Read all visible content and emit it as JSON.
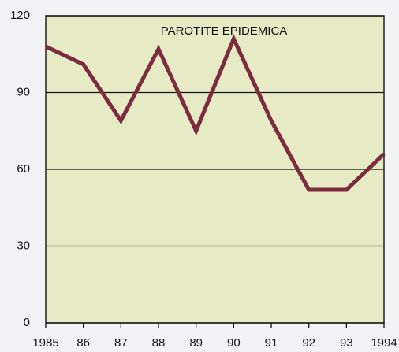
{
  "chart_data": {
    "type": "line",
    "title": "PAROTITE EPIDEMICA",
    "categories": [
      "1985",
      "86",
      "87",
      "88",
      "89",
      "90",
      "91",
      "92",
      "93",
      "1994"
    ],
    "series": [
      {
        "name": "PAROTITE EPIDEMICA",
        "color": "#7b2c3e",
        "values": [
          108,
          101,
          79,
          107,
          75,
          111,
          79,
          52,
          52,
          66
        ]
      }
    ],
    "ylim": [
      0,
      120
    ],
    "yticks": [
      0,
      30,
      60,
      90,
      120
    ],
    "grid": true
  }
}
